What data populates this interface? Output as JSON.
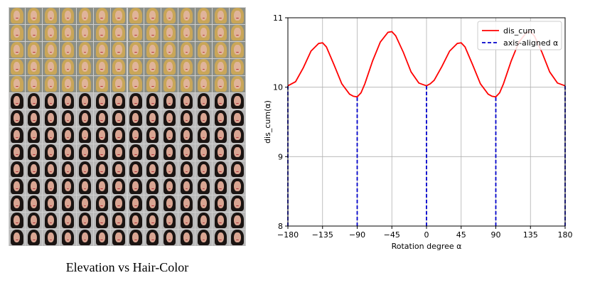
{
  "image_grid": {
    "caption": "Elevation vs Hair-Color",
    "rows": 14,
    "cols": 14,
    "light_hair_rows": 5
  },
  "chart_data": {
    "type": "line",
    "xlabel": "Rotation degree α",
    "ylabel": "dis_cum(α)",
    "xlim": [
      -180,
      180
    ],
    "ylim": [
      8,
      11
    ],
    "xticks": [
      -180,
      -135,
      -90,
      -45,
      0,
      45,
      90,
      135,
      180
    ],
    "yticks": [
      8,
      9,
      10,
      11
    ],
    "grid": true,
    "legend_position": "top-right",
    "series": [
      {
        "name": "dis_cum",
        "color": "#ff0000",
        "style": "solid",
        "x": [
          -180,
          -170,
          -160,
          -150,
          -140,
          -135,
          -130,
          -120,
          -110,
          -100,
          -95,
          -90,
          -85,
          -80,
          -70,
          -60,
          -50,
          -45,
          -40,
          -30,
          -20,
          -10,
          -5,
          0,
          5,
          10,
          20,
          30,
          40,
          45,
          50,
          60,
          70,
          80,
          85,
          90,
          95,
          100,
          110,
          120,
          130,
          135,
          140,
          150,
          160,
          170,
          180
        ],
        "y": [
          10.02,
          10.08,
          10.28,
          10.52,
          10.63,
          10.64,
          10.58,
          10.32,
          10.05,
          9.9,
          9.87,
          9.86,
          9.92,
          10.05,
          10.38,
          10.65,
          10.79,
          10.8,
          10.74,
          10.5,
          10.22,
          10.06,
          10.04,
          10.02,
          10.05,
          10.1,
          10.3,
          10.52,
          10.63,
          10.64,
          10.58,
          10.32,
          10.05,
          9.9,
          9.87,
          9.86,
          9.92,
          10.05,
          10.38,
          10.65,
          10.79,
          10.8,
          10.74,
          10.5,
          10.22,
          10.06,
          10.02
        ]
      },
      {
        "name": "axis-aligned α",
        "color": "#0000cc",
        "style": "dashed",
        "x": [
          -180,
          -90,
          0,
          90,
          180
        ],
        "y": [
          10.02,
          9.86,
          10.02,
          9.86,
          10.02
        ]
      }
    ]
  }
}
